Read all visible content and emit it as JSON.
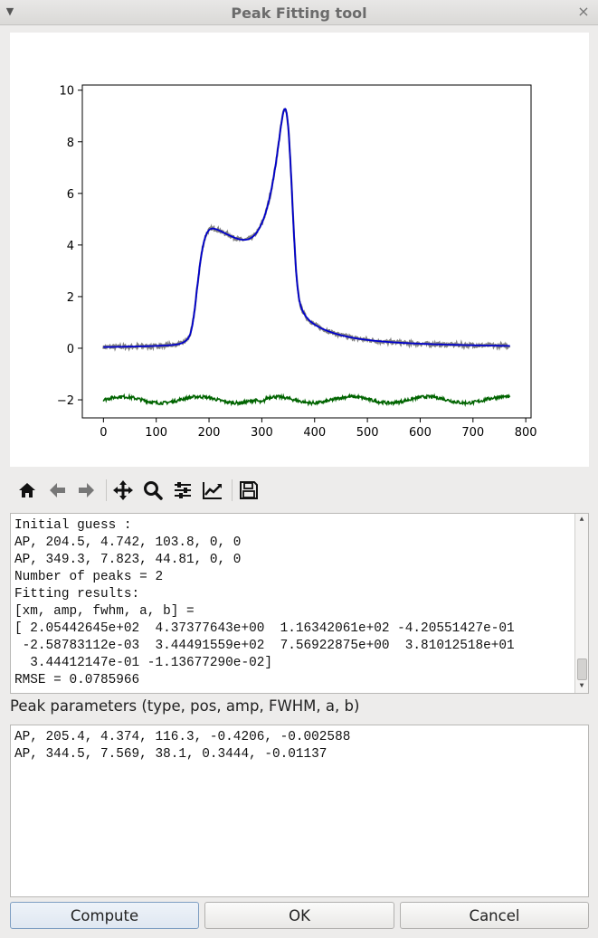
{
  "window": {
    "title": "Peak Fitting tool",
    "menu_icon": "chevron-down-icon",
    "close_icon": "close-icon"
  },
  "toolbar": {
    "tools": [
      "home-icon",
      "back-arrow-icon",
      "forward-arrow-icon",
      "pan-icon",
      "zoom-icon",
      "configure-subplots-icon",
      "edit-axes-icon",
      "save-icon"
    ]
  },
  "chart_data": {
    "type": "line",
    "x_ticks": [
      "0",
      "100",
      "200",
      "300",
      "400",
      "500",
      "600",
      "700",
      "800"
    ],
    "y_ticks": [
      "−2",
      "0",
      "2",
      "4",
      "6",
      "8",
      "10"
    ],
    "xlim": [
      -40,
      810
    ],
    "ylim": [
      -2.7,
      10.2
    ],
    "grid": false,
    "series": [
      {
        "color": "#808080",
        "style": "noisy data",
        "peaks": [
          {
            "pos": 205.4,
            "amp": 4.374,
            "fwhm": 116.3,
            "a": -0.4206,
            "b": -0.002588
          },
          {
            "pos": 344.5,
            "amp": 7.569,
            "fwhm": 38.1,
            "a": 0.3444,
            "b": -0.01137
          }
        ]
      },
      {
        "color": "#0000cc",
        "style": "fit",
        "peaks": [
          {
            "pos": 205.4,
            "amp": 4.374,
            "fwhm": 116.3,
            "a": -0.4206,
            "b": -0.002588
          },
          {
            "pos": 344.5,
            "amp": 7.569,
            "fwhm": 38.1,
            "a": 0.3444,
            "b": -0.01137
          }
        ]
      },
      {
        "color": "#006400",
        "style": "residual",
        "offset": -2
      }
    ],
    "x_range": [
      0,
      770
    ]
  },
  "log": {
    "lines": [
      "Initial guess :",
      "AP, 204.5, 4.742, 103.8, 0, 0",
      "AP, 349.3, 7.823, 44.81, 0, 0",
      "Number of peaks = 2",
      "Fitting results:",
      "[xm, amp, fwhm, a, b] =",
      "[ 2.05442645e+02  4.37377643e+00  1.16342061e+02 -4.20551427e-01",
      " -2.58783112e-03  3.44491559e+02  7.56922875e+00  3.81012518e+01",
      "  3.44412147e-01 -1.13677290e-02]",
      "RMSE = 0.0785966"
    ]
  },
  "params": {
    "label": "Peak parameters (type, pos, amp, FWHM, a, b)",
    "lines": [
      "AP, 205.4, 4.374, 116.3, -0.4206, -0.002588",
      "AP, 344.5, 7.569, 38.1, 0.3444, -0.01137"
    ]
  },
  "buttons": {
    "compute": "Compute",
    "ok": "OK",
    "cancel": "Cancel"
  }
}
